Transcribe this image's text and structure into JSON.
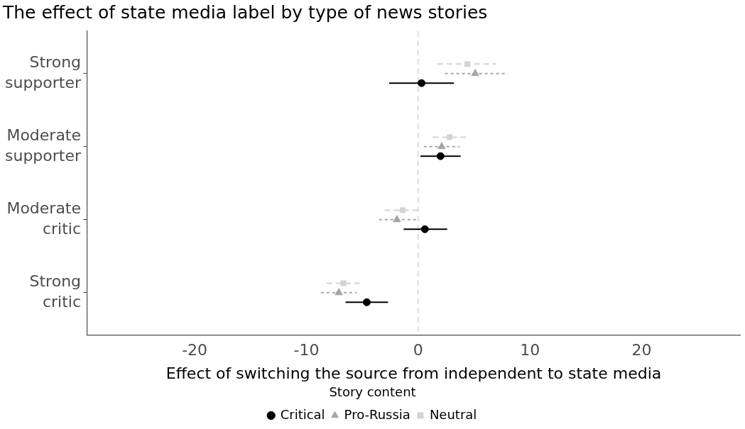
{
  "chart_data": {
    "type": "scatter",
    "orientation": "horizontal",
    "title": "The effect of state media label by type of news stories",
    "xlabel": "Effect of switching the source from independent to state media",
    "legend_title": "Story content",
    "legend": "bottom",
    "grid": false,
    "categories": [
      "Strong supporter",
      "Moderate supporter",
      "Moderate critic",
      "Strong critic"
    ],
    "xlim": [
      -29.6,
      28.8
    ],
    "xticks": [
      -20,
      -10,
      0,
      10,
      20
    ],
    "ref_lines": [
      {
        "axis": "x",
        "value": 0,
        "color": "#c8c8c8",
        "line_style": "dashed"
      }
    ],
    "series": [
      {
        "name": "Critical",
        "color": "#000000",
        "marker": "circle",
        "line_style": "solid",
        "values": [
          0.3,
          2.0,
          0.6,
          -4.6
        ],
        "errors": [
          [
            -2.6,
            3.2
          ],
          [
            0.2,
            3.8
          ],
          [
            -1.3,
            2.6
          ],
          [
            -6.5,
            -2.7
          ]
        ]
      },
      {
        "name": "Pro-Russia",
        "color": "#a6a6a6",
        "marker": "triangle",
        "line_style": "dotted",
        "values": [
          5.1,
          2.1,
          -1.9,
          -7.1
        ],
        "errors": [
          [
            2.4,
            7.8
          ],
          [
            0.5,
            3.7
          ],
          [
            -3.5,
            -0.2
          ],
          [
            -8.7,
            -5.5
          ]
        ]
      },
      {
        "name": "Neutral",
        "color": "#d3d3d3",
        "marker": "square",
        "line_style": "dashed",
        "values": [
          4.4,
          2.8,
          -1.4,
          -6.7
        ],
        "errors": [
          [
            1.7,
            7.0
          ],
          [
            1.3,
            4.3
          ],
          [
            -3.0,
            0.0
          ],
          [
            -8.2,
            -5.1
          ]
        ]
      }
    ]
  }
}
